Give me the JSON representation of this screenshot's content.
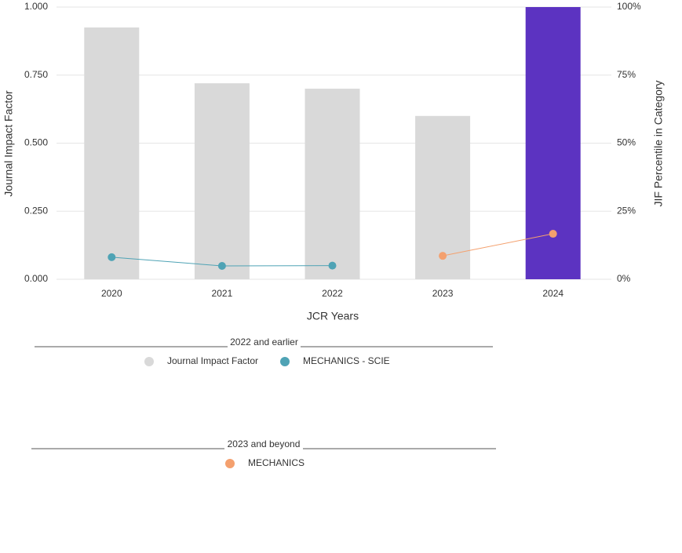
{
  "chart_data": {
    "type": "bar",
    "x_label": "JCR Years",
    "y_label": "Journal Impact Factor",
    "y2_label": "JIF Percentile in Category",
    "categories": [
      "2020",
      "2021",
      "2022",
      "2023",
      "2024"
    ],
    "ylim": [
      0,
      1
    ],
    "yticks": [
      {
        "value": 0,
        "label": "0.000"
      },
      {
        "value": 0.25,
        "label": "0.250"
      },
      {
        "value": 0.5,
        "label": "0.500"
      },
      {
        "value": 0.75,
        "label": "0.750"
      },
      {
        "value": 1,
        "label": "1.000"
      }
    ],
    "y2lim": [
      0,
      100
    ],
    "y2ticks": [
      {
        "value": 0,
        "label": "0%"
      },
      {
        "value": 25,
        "label": "25%"
      },
      {
        "value": 50,
        "label": "50%"
      },
      {
        "value": 75,
        "label": "75%"
      },
      {
        "value": 100,
        "label": "100%"
      }
    ],
    "grid": true,
    "series": [
      {
        "name": "Journal Impact Factor",
        "type": "bar",
        "color": "#d9d9d9",
        "colors": [
          "#d9d9d9",
          "#d9d9d9",
          "#d9d9d9",
          "#d9d9d9",
          "#5c33c1"
        ],
        "values": [
          0.925,
          0.72,
          0.7,
          0.6,
          1.0
        ]
      },
      {
        "name": "MECHANICS - SCIE",
        "type": "line",
        "axis": "y2",
        "color": "#4fa3b5",
        "values": [
          8.1,
          4.9,
          5.0,
          null,
          null
        ]
      },
      {
        "name": "MECHANICS",
        "type": "line",
        "axis": "y2",
        "color": "#f4a06e",
        "values": [
          null,
          null,
          null,
          8.6,
          16.7
        ]
      }
    ],
    "legend_groups": [
      {
        "title": "2022 and earlier",
        "series": [
          0,
          1
        ]
      },
      {
        "title": "2023 and beyond",
        "series": [
          2
        ]
      }
    ]
  }
}
